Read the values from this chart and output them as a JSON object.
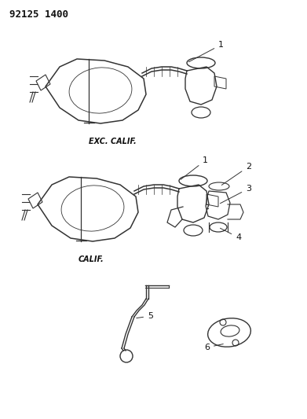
{
  "title": "92125 1400",
  "bg_color": "#ffffff",
  "line_color": "#333333",
  "label_color": "#111111",
  "diagram1_label": "EXC. CALIF.",
  "diagram2_label": "CALIF.",
  "fig_width": 3.91,
  "fig_height": 5.33,
  "dpi": 100
}
